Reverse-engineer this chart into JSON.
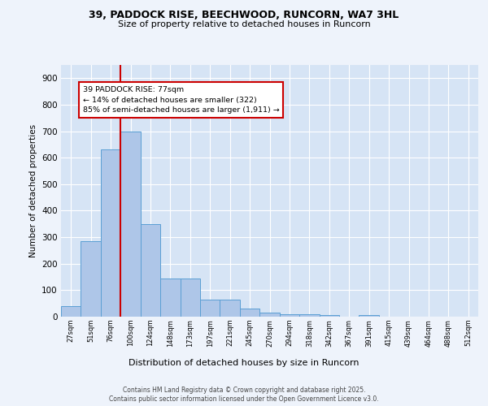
{
  "title_line1": "39, PADDOCK RISE, BEECHWOOD, RUNCORN, WA7 3HL",
  "title_line2": "Size of property relative to detached houses in Runcorn",
  "xlabel": "Distribution of detached houses by size in Runcorn",
  "ylabel": "Number of detached properties",
  "footer_line1": "Contains HM Land Registry data © Crown copyright and database right 2025.",
  "footer_line2": "Contains public sector information licensed under the Open Government Licence v3.0.",
  "bin_labels": [
    "27sqm",
    "51sqm",
    "76sqm",
    "100sqm",
    "124sqm",
    "148sqm",
    "173sqm",
    "197sqm",
    "221sqm",
    "245sqm",
    "270sqm",
    "294sqm",
    "318sqm",
    "342sqm",
    "367sqm",
    "391sqm",
    "415sqm",
    "439sqm",
    "464sqm",
    "488sqm",
    "512sqm"
  ],
  "bar_values": [
    40,
    285,
    630,
    700,
    350,
    145,
    145,
    65,
    65,
    30,
    15,
    10,
    10,
    5,
    0,
    5,
    0,
    0,
    0,
    0,
    0
  ],
  "bar_color": "#aec6e8",
  "bar_edge_color": "#5a9fd4",
  "vline_x_idx": 2,
  "vline_color": "#cc0000",
  "ylim": [
    0,
    950
  ],
  "yticks": [
    0,
    100,
    200,
    300,
    400,
    500,
    600,
    700,
    800,
    900
  ],
  "annotation_text": "39 PADDOCK RISE: 77sqm\n← 14% of detached houses are smaller (322)\n85% of semi-detached houses are larger (1,911) →",
  "annotation_box_color": "#ffffff",
  "annotation_box_edge": "#cc0000",
  "fig_bg_color": "#eef3fb",
  "plot_bg_color": "#d6e4f5"
}
